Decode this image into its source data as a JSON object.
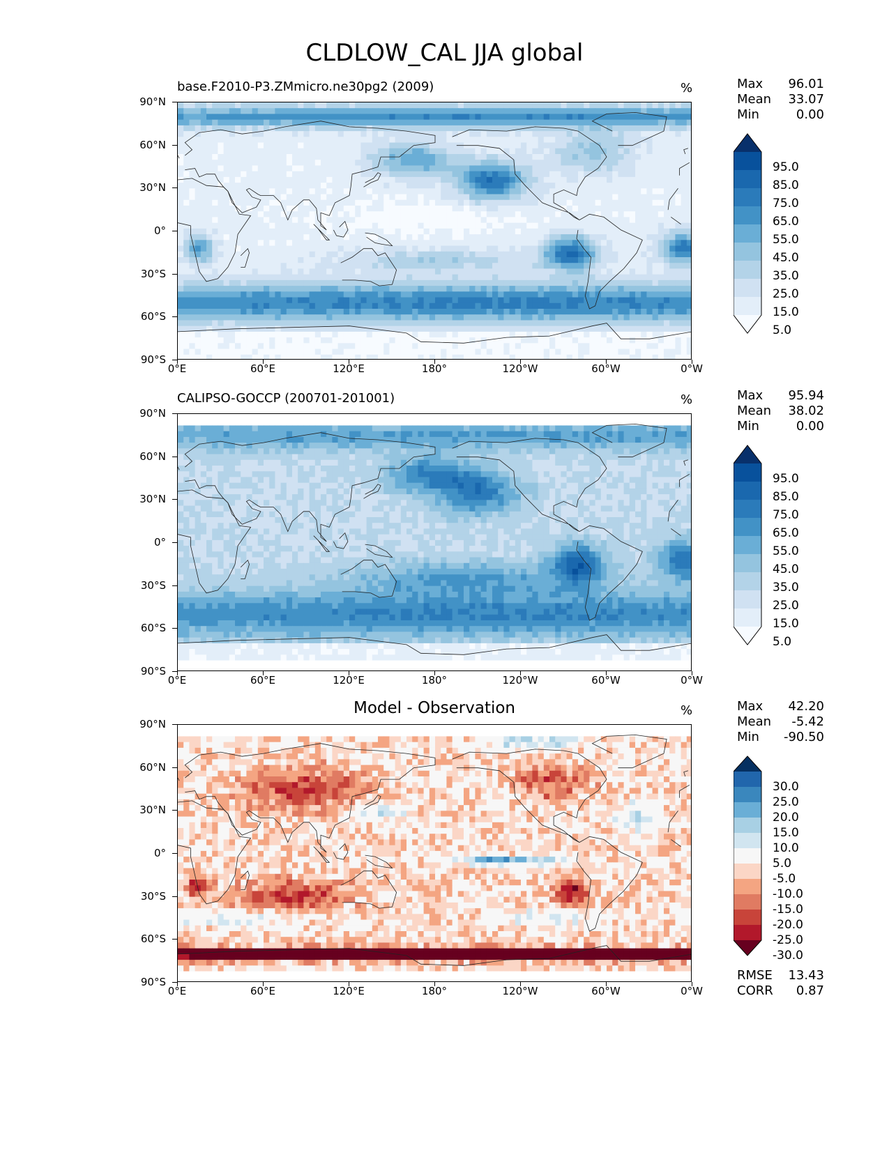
{
  "figure": {
    "title": "CLDLOW_CAL JJA global"
  },
  "axes": {
    "lat_labels": [
      "90°N",
      "60°N",
      "30°N",
      "0°",
      "30°S",
      "60°S",
      "90°S"
    ],
    "lon_labels": [
      "0°E",
      "60°E",
      "120°E",
      "180°",
      "120°W",
      "60°W",
      "0°W"
    ]
  },
  "panels": [
    {
      "title": "base.F2010-P3.ZMmicro.ne30pg2 (2009)",
      "title_pos": "left",
      "units": "%",
      "stats": [
        {
          "label": "Max",
          "value": "96.01"
        },
        {
          "label": "Mean",
          "value": "33.07"
        },
        {
          "label": "Min",
          "value": "0.00"
        }
      ],
      "colorbar": {
        "labels": [
          "95.0",
          "85.0",
          "75.0",
          "65.0",
          "55.0",
          "45.0",
          "35.0",
          "25.0",
          "15.0",
          "5.0"
        ],
        "colors": [
          "#08306b",
          "#08519c",
          "#1a68ae",
          "#2b7bba",
          "#4292c6",
          "#6aaed6",
          "#94c4df",
          "#b3d3e8",
          "#d0e1f2",
          "#e3eef9",
          "#f7fbff"
        ]
      },
      "metrics": []
    },
    {
      "title": "CALIPSO-GOCCP (200701-201001)",
      "title_pos": "left",
      "units": "%",
      "stats": [
        {
          "label": "Max",
          "value": "95.94"
        },
        {
          "label": "Mean",
          "value": "38.02"
        },
        {
          "label": "Min",
          "value": "0.00"
        }
      ],
      "colorbar": {
        "labels": [
          "95.0",
          "85.0",
          "75.0",
          "65.0",
          "55.0",
          "45.0",
          "35.0",
          "25.0",
          "15.0",
          "5.0"
        ],
        "colors": [
          "#08306b",
          "#08519c",
          "#1a68ae",
          "#2b7bba",
          "#4292c6",
          "#6aaed6",
          "#94c4df",
          "#b3d3e8",
          "#d0e1f2",
          "#e3eef9",
          "#f7fbff"
        ]
      },
      "metrics": []
    },
    {
      "title": "Model - Observation",
      "title_pos": "center",
      "units": "%",
      "stats": [
        {
          "label": "Max",
          "value": "42.20"
        },
        {
          "label": "Mean",
          "value": "-5.42"
        },
        {
          "label": "Min",
          "value": "-90.50"
        }
      ],
      "colorbar": {
        "labels": [
          "30.0",
          "25.0",
          "20.0",
          "15.0",
          "10.0",
          "5.0",
          "-5.0",
          "-10.0",
          "-15.0",
          "-20.0",
          "-25.0",
          "-30.0"
        ],
        "colors": [
          "#053061",
          "#2166ac",
          "#3a87bd",
          "#6aaed6",
          "#a8d0e4",
          "#d1e5f0",
          "#f7f7f7",
          "#fbd6c6",
          "#f4a582",
          "#e07b62",
          "#c8443a",
          "#b2182b",
          "#67001f"
        ]
      },
      "metrics": [
        {
          "label": "RMSE",
          "value": "13.43"
        },
        {
          "label": "CORR",
          "value": "0.87"
        }
      ]
    }
  ]
}
